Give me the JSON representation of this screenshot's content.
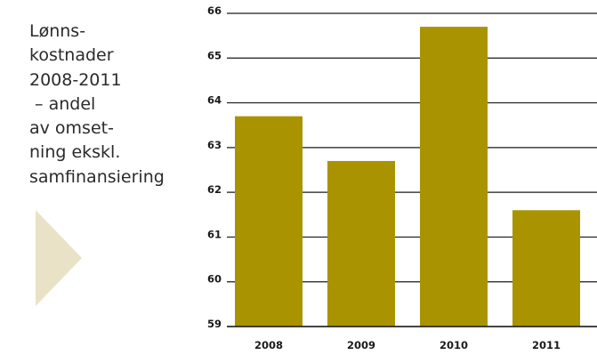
{
  "caption_lines": [
    "Lønns-",
    "kostnader",
    "2008-2011",
    " – andel",
    "av omset-",
    "ning ekskl.",
    "samfinansiering"
  ],
  "colors": {
    "bar": "#a99400",
    "arrow": "#e9e2c6",
    "grid": "#1a1a1a",
    "text": "#2b2b2b"
  },
  "chart_data": {
    "type": "bar",
    "categories": [
      "2008",
      "2009",
      "2010",
      "2011"
    ],
    "values": [
      63.7,
      62.7,
      65.7,
      61.6
    ],
    "yticks": [
      59,
      60,
      61,
      62,
      63,
      64,
      65,
      66
    ],
    "ylim": [
      59,
      66
    ],
    "grid": true
  }
}
